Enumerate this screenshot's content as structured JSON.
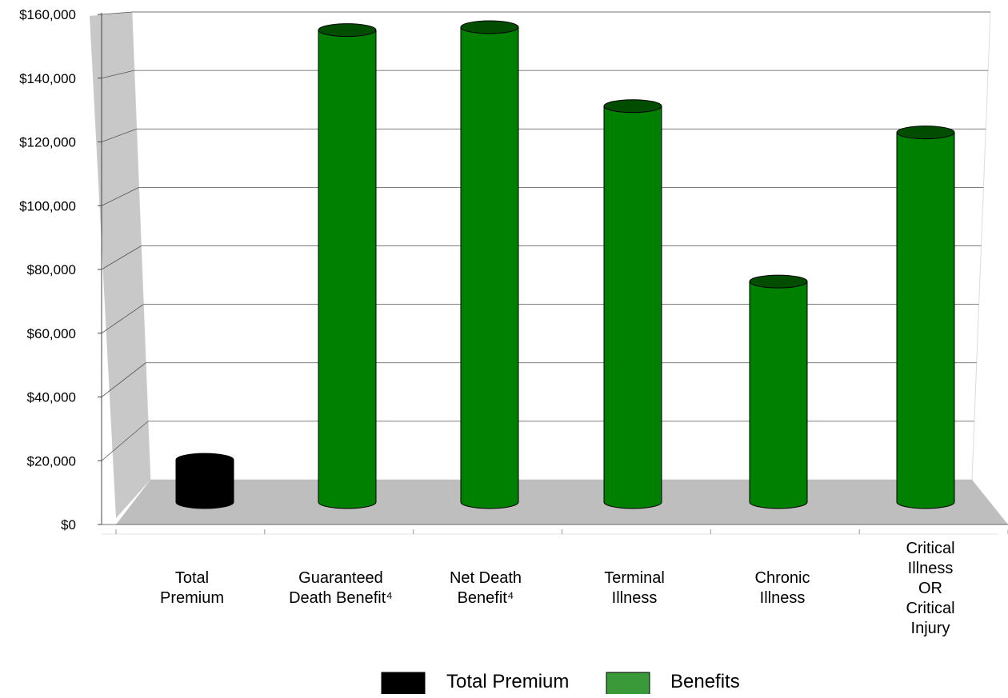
{
  "chart_data": {
    "type": "bar",
    "title": "",
    "xlabel": "",
    "ylabel": "",
    "ylim": [
      0,
      160000
    ],
    "yticks": [
      {
        "value": 0,
        "label": "$0"
      },
      {
        "value": 20000,
        "label": "$20,000"
      },
      {
        "value": 40000,
        "label": "$40,000"
      },
      {
        "value": 60000,
        "label": "$60,000"
      },
      {
        "value": 80000,
        "label": "$80,000"
      },
      {
        "value": 100000,
        "label": "$100,000"
      },
      {
        "value": 120000,
        "label": "$120,000"
      },
      {
        "value": 140000,
        "label": "$140,000"
      },
      {
        "value": 160000,
        "label": "$160,000"
      }
    ],
    "categories": [
      {
        "lines": [
          "Total",
          "Premium"
        ]
      },
      {
        "lines": [
          "Guaranteed",
          "Death Benefit⁴"
        ]
      },
      {
        "lines": [
          "Net Death",
          "Benefit⁴"
        ]
      },
      {
        "lines": [
          "Terminal",
          "Illness"
        ]
      },
      {
        "lines": [
          "Chronic",
          "Illness"
        ]
      },
      {
        "lines": [
          "Critical",
          "Illness",
          "OR",
          "Critical",
          "Injury"
        ]
      }
    ],
    "values": [
      9000,
      156000,
      157000,
      130000,
      70000,
      121000
    ],
    "series_index": [
      0,
      1,
      1,
      1,
      1,
      1
    ],
    "series": [
      {
        "name": "Total Premium",
        "color": "#000000"
      },
      {
        "name": "Benefits",
        "color": "#008000"
      }
    ],
    "legend_position": "bottom-center",
    "grid": true,
    "style": "3d-cylinder"
  }
}
